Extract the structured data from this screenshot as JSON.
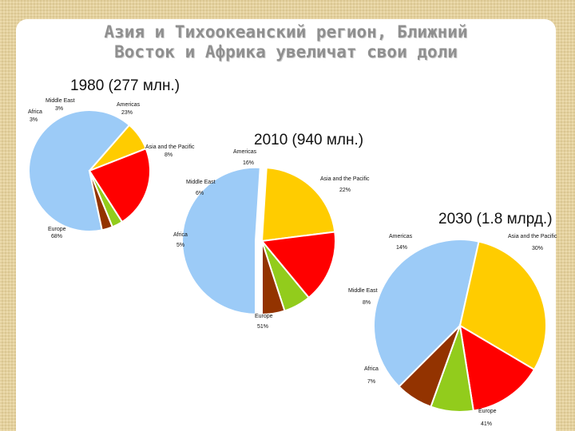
{
  "slide": {
    "title_line1": "Азия и Тихоокеанский регион, Ближний",
    "title_line2": "Восток и Африка увеличат свои доли"
  },
  "colors": {
    "Europe": "#9ccbf7",
    "Asia and the Pacific": "#ffcc00",
    "Americas": "#ff0000",
    "Middle East": "#92cc1c",
    "Africa": "#933300"
  },
  "chart_data": [
    {
      "type": "pie",
      "title": "1980 (277 млн.)",
      "slices": [
        {
          "name": "Europe",
          "value": 68,
          "name_label": "Europe",
          "pct_label": "68%"
        },
        {
          "name": "Asia and the Pacific",
          "value": 8,
          "name_label": "Asia and the Pacific",
          "pct_label": "8%"
        },
        {
          "name": "Americas",
          "value": 23,
          "name_label": "Americas",
          "pct_label": "23%"
        },
        {
          "name": "Middle East",
          "value": 3,
          "name_label": "Middle East",
          "pct_label": "3%"
        },
        {
          "name": "Africa",
          "value": 3,
          "name_label": "Africa",
          "pct_label": "3%"
        }
      ]
    },
    {
      "type": "pie",
      "title": "2010 (940 млн.)",
      "slices": [
        {
          "name": "Europe",
          "value": 51,
          "name_label": "Europe",
          "pct_label": "51%"
        },
        {
          "name": "Asia and the Pacific",
          "value": 22,
          "name_label": "Asia and the Pacific",
          "pct_label": "22%"
        },
        {
          "name": "Americas",
          "value": 16,
          "name_label": "Americas",
          "pct_label": "16%"
        },
        {
          "name": "Middle East",
          "value": 6,
          "name_label": "Middle East",
          "pct_label": "6%"
        },
        {
          "name": "Africa",
          "value": 5,
          "name_label": "Africa",
          "pct_label": "5%"
        }
      ]
    },
    {
      "type": "pie",
      "title": "2030 (1.8 млрд.)",
      "slices": [
        {
          "name": "Europe",
          "value": 41,
          "name_label": "Europe",
          "pct_label": "41%"
        },
        {
          "name": "Asia and the Pacific",
          "value": 30,
          "name_label": "Asia and the Pacific",
          "pct_label": "30%"
        },
        {
          "name": "Americas",
          "value": 14,
          "name_label": "Americas",
          "pct_label": "14%"
        },
        {
          "name": "Middle East",
          "value": 8,
          "name_label": "Middle East",
          "pct_label": "8%"
        },
        {
          "name": "Africa",
          "value": 7,
          "name_label": "Africa",
          "pct_label": "7%"
        }
      ]
    }
  ]
}
